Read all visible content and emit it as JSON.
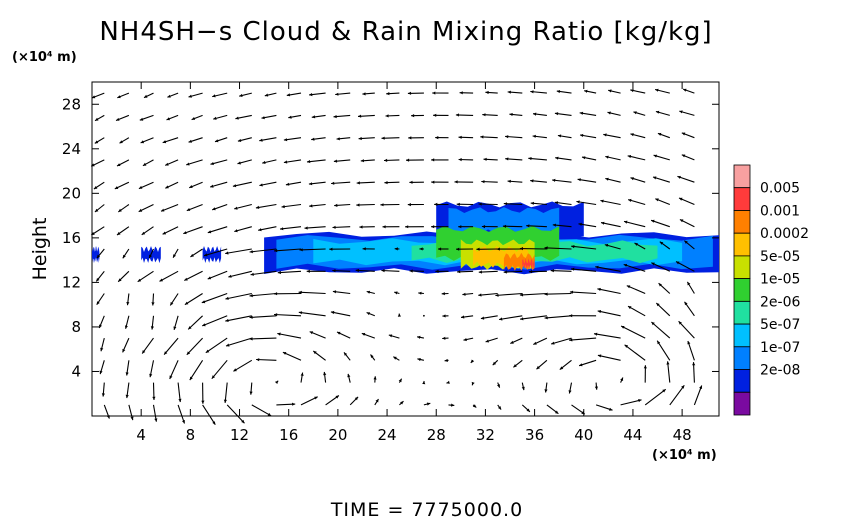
{
  "chart_data": {
    "type": "heatmap",
    "title": "NH4SH−s Cloud & Rain Mixing Ratio [kg/kg]",
    "xlabel": "",
    "x_unit": "(×10⁴ m)",
    "ylabel": "Height",
    "y_unit": "(×10⁴ m)",
    "xlim": [
      0,
      51
    ],
    "ylim": [
      0,
      30
    ],
    "x_ticks": [
      4,
      8,
      12,
      16,
      20,
      24,
      28,
      32,
      36,
      40,
      44,
      48
    ],
    "y_ticks": [
      4,
      8,
      12,
      16,
      20,
      24,
      28
    ],
    "footer": "TIME  =  7775000.0",
    "colorbar": {
      "labels": [
        "0.005",
        "0.001",
        "0.0002",
        "5e-05",
        "1e-05",
        "2e-06",
        "5e-07",
        "1e-07",
        "2e-08"
      ],
      "colors": [
        "#f8a0a0",
        "#ff3b3b",
        "#ff8000",
        "#ffc000",
        "#c8e000",
        "#30d030",
        "#20e0a0",
        "#00c0ff",
        "#0080ff",
        "#0020e0",
        "#7a0aa0"
      ]
    },
    "cloud_layer": {
      "x_range": [
        14,
        51
      ],
      "y_range": [
        13,
        19
      ],
      "max_region_x": [
        30,
        36
      ],
      "max_region_y": [
        13,
        16
      ],
      "isolated_patches_x": [
        [
          0,
          0.6
        ],
        [
          4,
          5.6
        ],
        [
          9,
          10.5
        ]
      ],
      "isolated_patches_y": [
        14,
        15
      ]
    },
    "wind_field": {
      "type": "vector",
      "circulation_centers": [
        {
          "x": 14,
          "y": 3
        },
        {
          "x": 43,
          "y": 3
        }
      ],
      "strong_jet_levels": [
        10,
        14.5
      ]
    }
  }
}
